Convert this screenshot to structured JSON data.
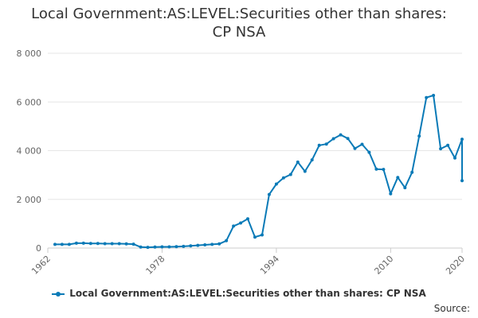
{
  "chart_data": {
    "type": "line",
    "title_lines": [
      "Local Government:AS:LEVEL:Securities other than shares:",
      "CP NSA"
    ],
    "xlabel": "",
    "ylabel": "",
    "xlim": [
      1962,
      2020
    ],
    "ylim": [
      0,
      8000
    ],
    "x_ticks": [
      "1962",
      "1978",
      "1994",
      "2010",
      "2020"
    ],
    "x_tick_values": [
      1962,
      1978,
      1994,
      2010,
      2020
    ],
    "y_ticks": [
      "0",
      "2 000",
      "4 000",
      "6 000",
      "8 000"
    ],
    "y_tick_values": [
      0,
      2000,
      4000,
      6000,
      8000
    ],
    "grid": true,
    "legend_position": "bottom",
    "series": [
      {
        "name": "Local Government:AS:LEVEL:Securities other than shares: CP NSA",
        "color": "#0a7ab7",
        "x": [
          1963,
          1964,
          1965,
          1966,
          1967,
          1968,
          1969,
          1970,
          1971,
          1972,
          1973,
          1974,
          1975,
          1976,
          1977,
          1978,
          1979,
          1980,
          1981,
          1982,
          1983,
          1984,
          1985,
          1986,
          1987,
          1988,
          1989,
          1990,
          1991,
          1992,
          1993,
          1994,
          1995,
          1996,
          1997,
          1998,
          1999,
          2000,
          2001,
          2002,
          2003,
          2004,
          2005,
          2006,
          2007,
          2008,
          2009,
          2010,
          2011,
          2012,
          2013,
          2014,
          2015,
          2016,
          2017,
          2018,
          2019,
          2020
        ],
        "values": [
          150,
          150,
          150,
          200,
          200,
          190,
          190,
          180,
          180,
          180,
          170,
          160,
          40,
          30,
          40,
          50,
          50,
          60,
          70,
          90,
          110,
          130,
          150,
          170,
          300,
          900,
          1030,
          1200,
          450,
          540,
          2200,
          2630,
          2880,
          3020,
          3530,
          3150,
          3620,
          4220,
          4270,
          4490,
          4650,
          4500,
          4090,
          4260,
          3930,
          3240,
          3230,
          2230,
          2900,
          2480,
          3110,
          4600,
          6180,
          6270,
          4080,
          4220,
          3700,
          4470
        ]
      }
    ],
    "extra_point": {
      "x": 2020,
      "value": 2770
    }
  },
  "legend": {
    "label": "Local Government:AS:LEVEL:Securities other than shares: CP NSA"
  },
  "source": {
    "label": "Source:"
  }
}
